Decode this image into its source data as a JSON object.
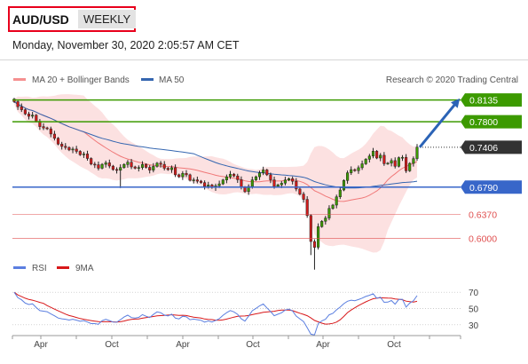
{
  "header": {
    "pair": "AUD/USD",
    "timeframe": "WEEKLY",
    "datetime": "Monday, November 30, 2020 2:05:57 AM CET"
  },
  "colors": {
    "resistance": "#3c9a00",
    "support": "#3866c9",
    "target": "#e05050",
    "arrow": "#2b63b6",
    "price_tag": "#333333",
    "band_fill": "#fcdcdc",
    "ma20": "#f07878",
    "ma50": "#3566b0",
    "rsi": "#5b7fe0",
    "rsi_ma": "#d8181a"
  },
  "chart_data": [
    {
      "type": "candlestick",
      "legend": [
        {
          "label": "MA 20 + Bollinger Bands",
          "color": "#f59090",
          "icon": "line-swatch"
        },
        {
          "label": "MA 50",
          "color": "#3566b0",
          "icon": "line-swatch"
        }
      ],
      "credit": "Research © 2020 Trading Central",
      "current_price": 0.7406,
      "ylim": [
        0.5566,
        0.8309
      ],
      "levels": [
        {
          "label": "0.8135",
          "value": 0.8135,
          "kind": "resistance"
        },
        {
          "label": "0.7800",
          "value": 0.78,
          "kind": "resistance"
        },
        {
          "label": "0.7406",
          "value": 0.7406,
          "kind": "current"
        },
        {
          "label": "0.6790",
          "value": 0.679,
          "kind": "support"
        },
        {
          "label": "0.6370",
          "value": 0.637,
          "kind": "target"
        },
        {
          "label": "0.6000",
          "value": 0.6,
          "kind": "target"
        }
      ],
      "x_ticks": [
        "Apr",
        "Oct",
        "Apr",
        "Oct",
        "Apr",
        "Oct"
      ],
      "forecast_arrow": {
        "from": 0.7406,
        "to": 0.8135
      },
      "close": [
        0.811,
        0.8032,
        0.7985,
        0.792,
        0.7885,
        0.7902,
        0.7808,
        0.7725,
        0.7705,
        0.769,
        0.761,
        0.7545,
        0.7455,
        0.742,
        0.7402,
        0.7364,
        0.7378,
        0.7342,
        0.729,
        0.7302,
        0.7232,
        0.7145,
        0.7135,
        0.7082,
        0.7142,
        0.7165,
        0.7115,
        0.7062,
        0.705,
        0.7092,
        0.714,
        0.7175,
        0.7102,
        0.7082,
        0.7092,
        0.714,
        0.7095,
        0.7052,
        0.711,
        0.716,
        0.7142,
        0.7082,
        0.706,
        0.709,
        0.698,
        0.695,
        0.7002,
        0.698,
        0.6895,
        0.6902,
        0.6882,
        0.686,
        0.6802,
        0.6822,
        0.6782,
        0.681,
        0.684,
        0.69,
        0.695,
        0.699,
        0.6962,
        0.6905,
        0.6788,
        0.672,
        0.68,
        0.6902,
        0.695,
        0.701,
        0.7055,
        0.698,
        0.6902,
        0.68,
        0.6825,
        0.685,
        0.69,
        0.692,
        0.688,
        0.676,
        0.6682,
        0.66,
        0.635,
        0.595,
        0.586,
        0.618,
        0.6262,
        0.6312,
        0.646,
        0.6512,
        0.664,
        0.6745,
        0.6892,
        0.7012,
        0.706,
        0.7045,
        0.709,
        0.715,
        0.722,
        0.727,
        0.7345,
        0.724,
        0.7282,
        0.7152,
        0.716,
        0.72,
        0.7112,
        0.7245,
        0.725,
        0.7042,
        0.7157,
        0.723,
        0.7406
      ],
      "rsi": {
        "legend": [
          {
            "label": "RSI",
            "color": "#5b7fe0",
            "icon": "line-swatch"
          },
          {
            "label": "9MA",
            "color": "#d8181a",
            "icon": "line-swatch"
          }
        ],
        "ylim": [
          20,
          80
        ],
        "ticks": [
          "70",
          "50",
          "30"
        ],
        "levels": [
          70,
          50,
          30
        ],
        "values": [
          70.0,
          63.3,
          60.7,
          56.7,
          54.9,
          55.8,
          51.2,
          47.4,
          46.7,
          46.1,
          43.3,
          41.1,
          38.3,
          37.3,
          36.8,
          35.8,
          36.8,
          35.7,
          34.3,
          35.2,
          33.4,
          31.5,
          31.5,
          30.7,
          35.1,
          36.8,
          35.2,
          33.4,
          33.2,
          36.2,
          39.5,
          41.8,
          38.9,
          38.2,
          39.1,
          42.5,
          40.5,
          38.9,
          42.7,
          45.9,
          44.9,
          41.9,
          41.0,
          43.0,
          38.2,
          37.2,
          40.5,
          39.8,
          36.3,
          37.0,
          36.3,
          35.5,
          33.3,
          34.7,
          33.4,
          35.4,
          37.5,
          41.7,
          44.9,
          47.5,
          45.9,
          42.8,
          37.3,
          34.5,
          40.5,
          47.3,
          50.1,
          53.3,
          55.6,
          50.8,
          46.3,
          41.2,
          43.0,
          44.8,
          48.1,
          49.4,
          47.0,
          40.7,
          37.3,
          34.0,
          26.4,
          18.5,
          17.5,
          31.5,
          34.8,
          36.8,
          42.2,
          44.0,
          48.4,
          51.7,
          56.0,
          59.0,
          60.2,
          59.6,
          61.0,
          62.8,
          64.8,
          66.2,
          68.1,
          62.6,
          63.9,
          57.6,
          57.9,
          59.8,
          55.3,
          61.1,
          61.3,
          51.8,
          56.7,
          59.5,
          65.8
        ]
      }
    }
  ]
}
